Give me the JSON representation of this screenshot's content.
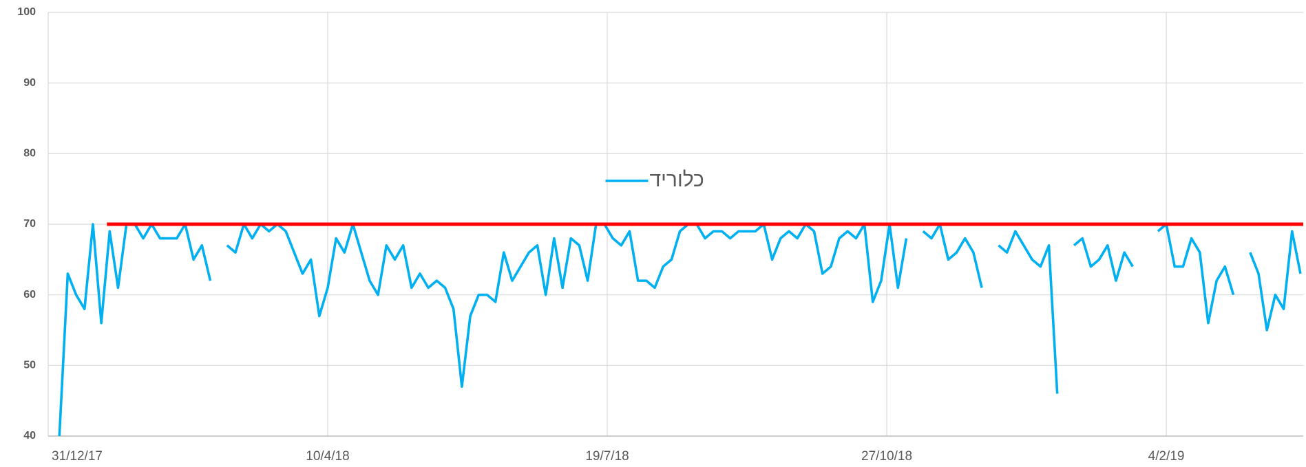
{
  "chart_data": {
    "type": "line",
    "x": [
      "2018-01-04",
      "2018-01-07",
      "2018-01-10",
      "2018-01-13",
      "2018-01-16",
      "2018-01-19",
      "2018-01-22",
      "2018-01-25",
      "2018-01-28",
      "2018-01-31",
      "2018-02-03",
      "2018-02-06",
      "2018-02-09",
      "2018-02-12",
      "2018-02-15",
      "2018-02-18",
      "2018-02-21",
      "2018-02-24",
      "2018-02-27",
      "2018-03-02",
      "2018-03-05",
      "2018-03-08",
      "2018-03-11",
      "2018-03-14",
      "2018-03-17",
      "2018-03-20",
      "2018-03-23",
      "2018-03-26",
      "2018-03-29",
      "2018-04-01",
      "2018-04-04",
      "2018-04-07",
      "2018-04-10",
      "2018-04-13",
      "2018-04-16",
      "2018-04-19",
      "2018-04-22",
      "2018-04-25",
      "2018-04-28",
      "2018-05-01",
      "2018-05-04",
      "2018-05-07",
      "2018-05-10",
      "2018-05-13",
      "2018-05-16",
      "2018-05-19",
      "2018-05-22",
      "2018-05-25",
      "2018-05-28",
      "2018-05-31",
      "2018-06-03",
      "2018-06-06",
      "2018-06-09",
      "2018-06-12",
      "2018-06-15",
      "2018-06-18",
      "2018-06-21",
      "2018-06-24",
      "2018-06-27",
      "2018-06-30",
      "2018-07-03",
      "2018-07-06",
      "2018-07-09",
      "2018-07-12",
      "2018-07-15",
      "2018-07-18",
      "2018-07-21",
      "2018-07-24",
      "2018-07-27",
      "2018-07-30",
      "2018-08-02",
      "2018-08-05",
      "2018-08-08",
      "2018-08-11",
      "2018-08-14",
      "2018-08-17",
      "2018-08-20",
      "2018-08-23",
      "2018-08-26",
      "2018-08-29",
      "2018-09-01",
      "2018-09-04",
      "2018-09-07",
      "2018-09-10",
      "2018-09-13",
      "2018-09-16",
      "2018-09-19",
      "2018-09-22",
      "2018-09-25",
      "2018-09-28",
      "2018-10-01",
      "2018-10-04",
      "2018-10-07",
      "2018-10-10",
      "2018-10-13",
      "2018-10-16",
      "2018-10-19",
      "2018-10-22",
      "2018-10-25",
      "2018-10-28",
      "2018-10-31",
      "2018-11-03",
      "2018-11-06",
      "2018-11-09",
      "2018-11-12",
      "2018-11-15",
      "2018-11-18",
      "2018-11-21",
      "2018-11-24",
      "2018-11-27",
      "2018-11-30",
      "2018-12-03",
      "2018-12-06",
      "2018-12-09",
      "2018-12-12",
      "2018-12-15",
      "2018-12-18",
      "2018-12-21",
      "2018-12-24",
      "2018-12-27",
      "2018-12-30",
      "2019-01-02",
      "2019-01-05",
      "2019-01-08",
      "2019-01-11",
      "2019-01-14",
      "2019-01-17",
      "2019-01-20",
      "2019-01-23",
      "2019-01-26",
      "2019-01-29",
      "2019-02-01",
      "2019-02-04",
      "2019-02-07",
      "2019-02-10",
      "2019-02-13",
      "2019-02-16",
      "2019-02-19",
      "2019-02-22",
      "2019-02-25",
      "2019-02-28",
      "2019-03-03",
      "2019-03-06",
      "2019-03-09",
      "2019-03-12",
      "2019-03-15",
      "2019-03-18",
      "2019-03-21",
      "2019-03-24"
    ],
    "series": [
      {
        "name": "כלוריד",
        "color": "#00b0f0",
        "values": [
          40,
          63,
          60,
          58,
          70,
          56,
          69,
          61,
          70,
          70,
          68,
          70,
          68,
          68,
          68,
          70,
          65,
          67,
          62,
          null,
          67,
          66,
          70,
          68,
          70,
          69,
          70,
          69,
          66,
          63,
          65,
          57,
          61,
          68,
          66,
          70,
          66,
          62,
          60,
          67,
          65,
          67,
          61,
          63,
          61,
          62,
          61,
          58,
          47,
          57,
          60,
          60,
          59,
          66,
          62,
          64,
          66,
          67,
          60,
          68,
          61,
          68,
          67,
          62,
          70,
          70,
          68,
          67,
          69,
          62,
          62,
          61,
          64,
          65,
          69,
          70,
          70,
          68,
          69,
          69,
          68,
          69,
          69,
          69,
          70,
          65,
          68,
          69,
          68,
          70,
          69,
          63,
          64,
          68,
          69,
          68,
          70,
          59,
          62,
          70,
          61,
          68,
          null,
          69,
          68,
          70,
          65,
          66,
          68,
          66,
          61,
          null,
          67,
          66,
          69,
          67,
          65,
          64,
          67,
          46,
          null,
          67,
          68,
          64,
          65,
          67,
          62,
          66,
          64,
          null,
          null,
          69,
          70,
          64,
          64,
          68,
          66,
          56,
          62,
          64,
          60,
          null,
          66,
          63,
          55,
          60,
          58,
          69,
          63
        ]
      }
    ],
    "reference_line": {
      "x": [
        "2018-01-21",
        "2019-03-25"
      ],
      "values": [
        70,
        70
      ],
      "color": "#ff0000"
    },
    "xlim": [
      "2017-12-31",
      "2019-03-25"
    ],
    "xticks": [
      {
        "value": "2017-12-31",
        "label": "31/12/17"
      },
      {
        "value": "2018-04-10",
        "label": "10/4/18"
      },
      {
        "value": "2018-07-19",
        "label": "19/7/18"
      },
      {
        "value": "2018-10-27",
        "label": "27/10/18"
      },
      {
        "value": "2019-02-04",
        "label": "4/2/19"
      }
    ],
    "ylim": [
      40,
      100
    ],
    "yticks": [
      40,
      50,
      60,
      70,
      80,
      90,
      100
    ],
    "grid": true,
    "legend": "top"
  }
}
